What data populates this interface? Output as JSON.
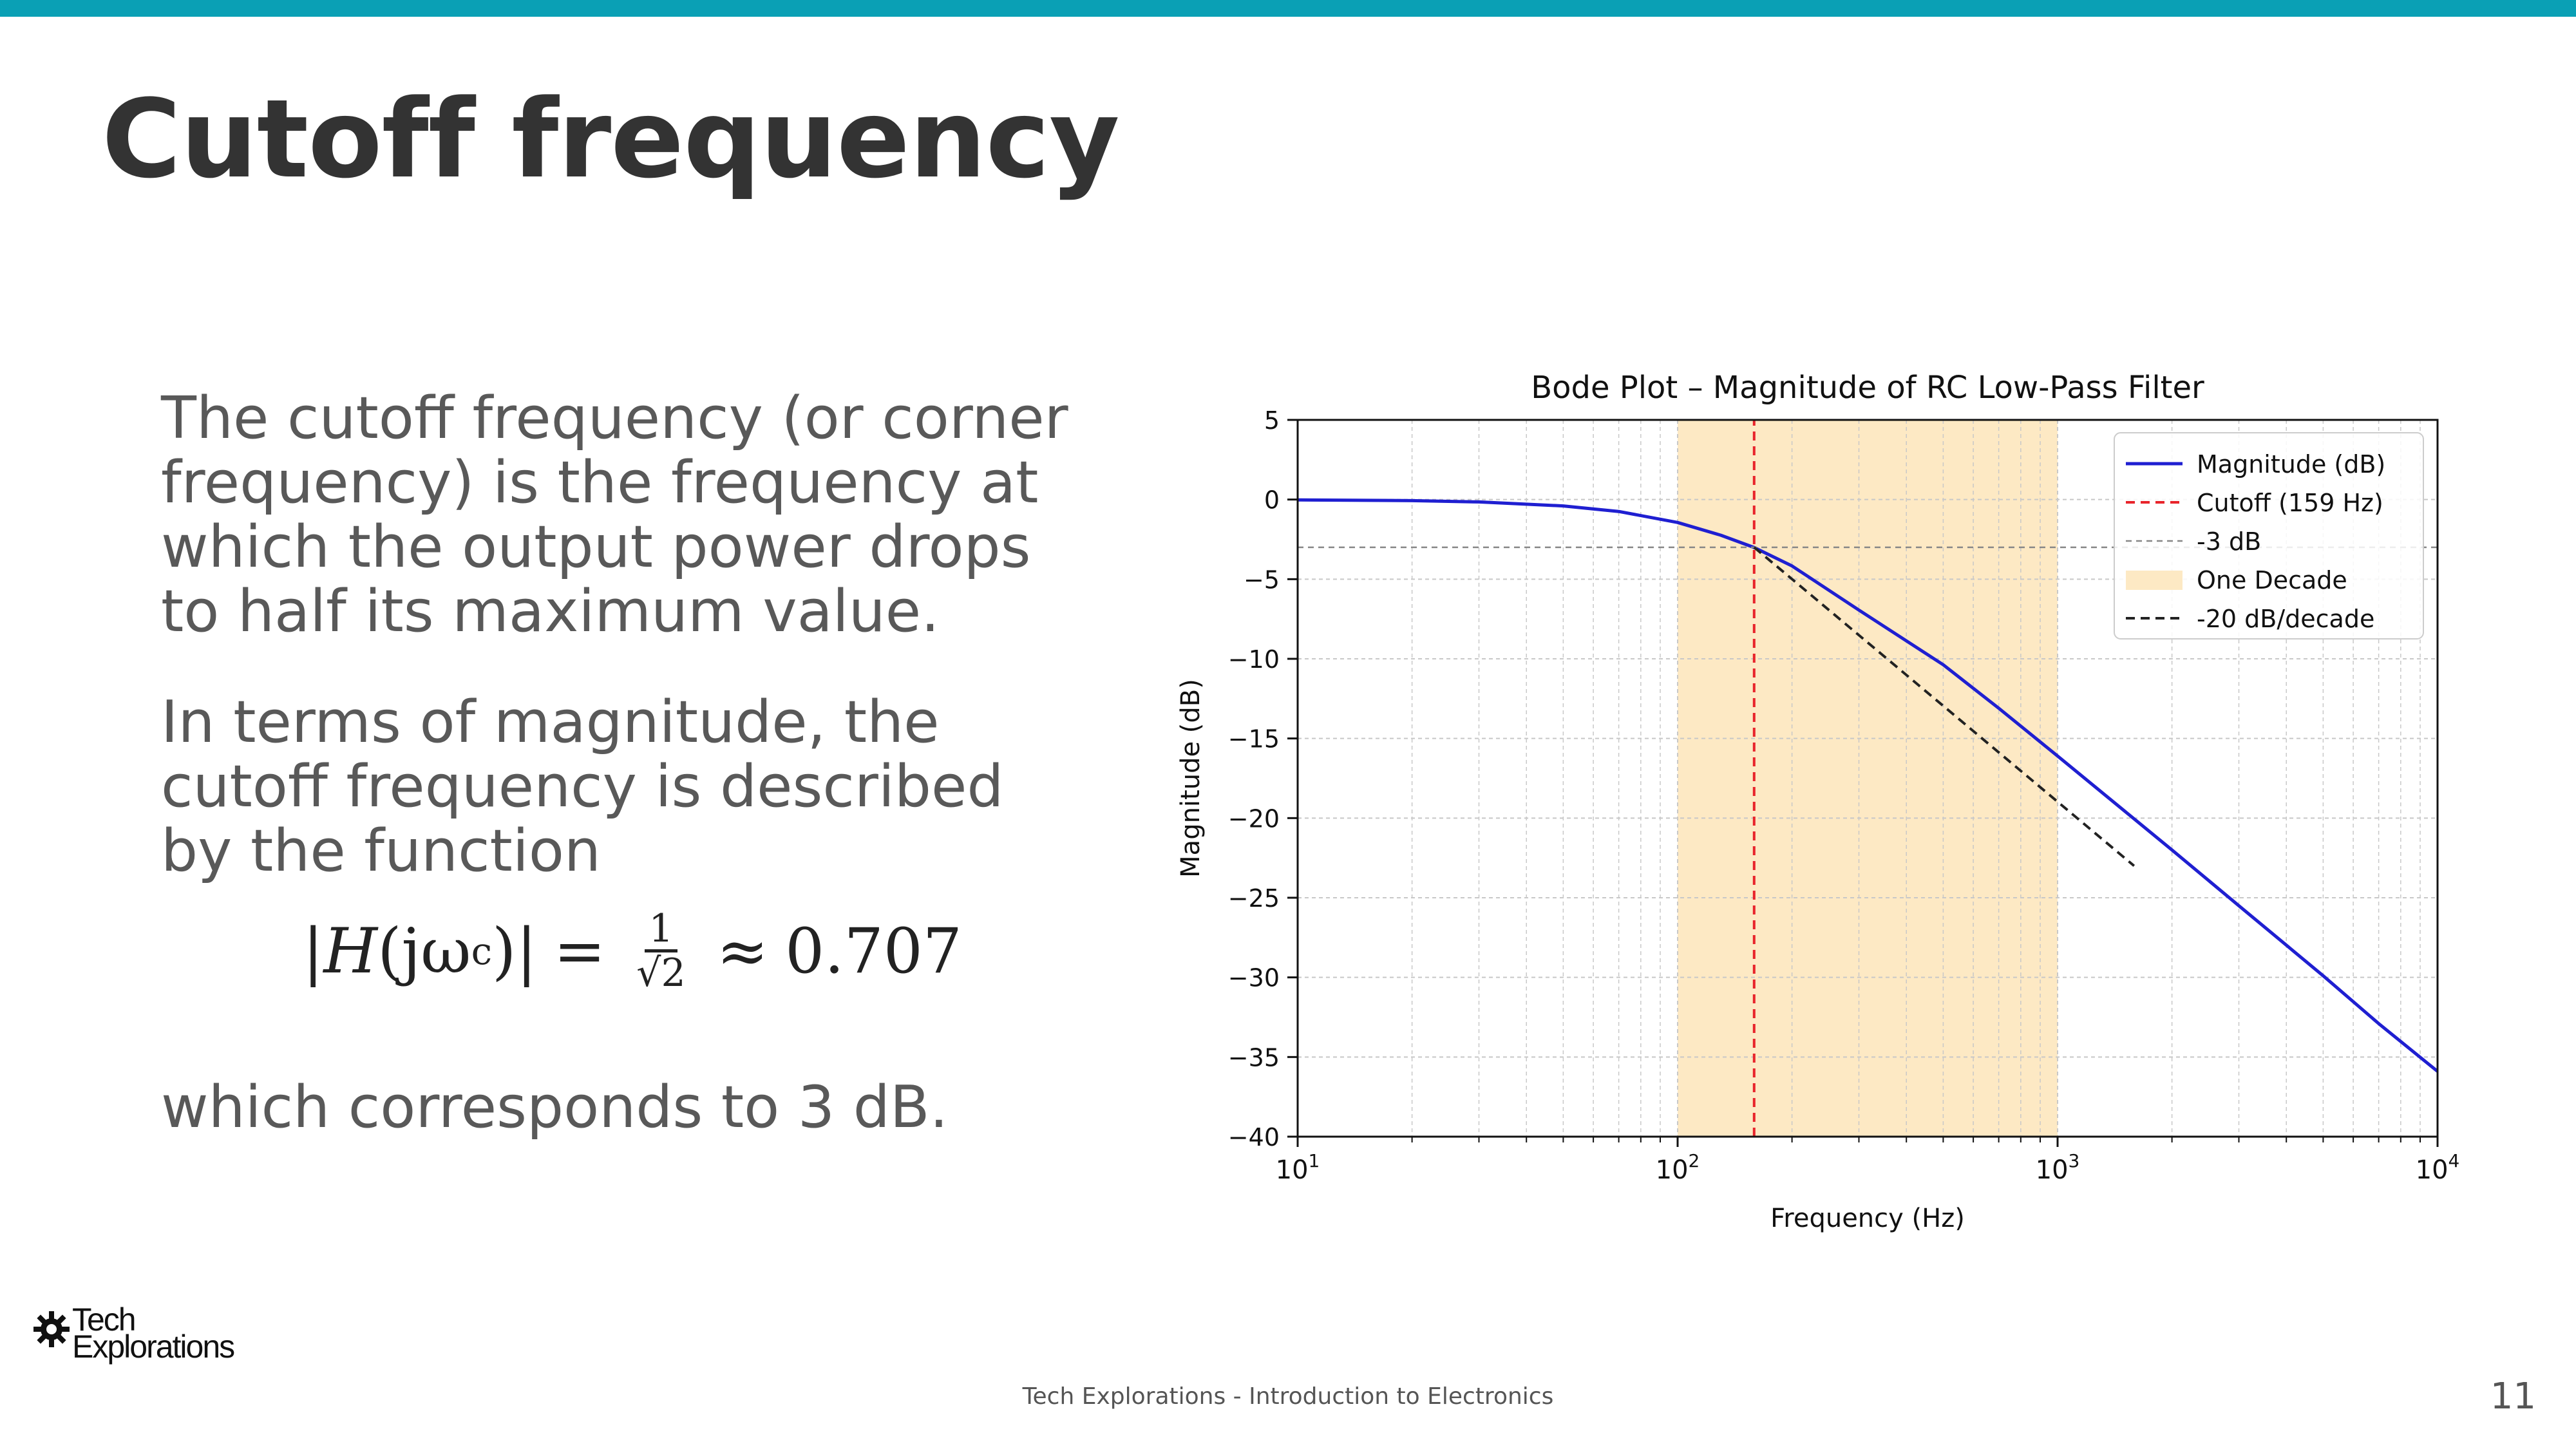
{
  "slide": {
    "title": "Cutoff frequency",
    "paragraph1": "The cutoff frequency (or corner frequency) is the frequency at which the output power drops to half its maximum value.",
    "paragraph2": "In terms of magnitude, the cutoff frequency is described by the function",
    "formula": {
      "lhs_open": "|",
      "lhs_var": "H",
      "lhs_args": "(jω",
      "lhs_sub": "c",
      "lhs_close": ")|",
      "equals": "=",
      "frac_num": "1",
      "frac_den": "√2",
      "approx": "≈",
      "value": "0.707"
    },
    "paragraph3": "which corresponds to 3 dB.",
    "footer": "Tech Explorations - Introduction to Electronics",
    "page_number": "11",
    "logo": {
      "line1": "Tech",
      "line2": "Explorations",
      "icon": "gear-icon"
    }
  },
  "colors": {
    "accent_bar": "#0aa0b5",
    "magnitude": "#1f1fd1",
    "cutoff": "#e8242b",
    "decade_band": "#fde9c4",
    "reference": "#888888",
    "slope": "#222222"
  },
  "chart_data": {
    "type": "line",
    "title": "Bode Plot – Magnitude of RC Low-Pass Filter",
    "xlabel": "Frequency (Hz)",
    "ylabel": "Magnitude (dB)",
    "xscale": "log",
    "xlim": [
      10,
      10000
    ],
    "ylim": [
      -40,
      5
    ],
    "x_ticks": [
      {
        "value": 10,
        "base": "10",
        "exp": "1"
      },
      {
        "value": 100,
        "base": "10",
        "exp": "2"
      },
      {
        "value": 1000,
        "base": "10",
        "exp": "3"
      },
      {
        "value": 10000,
        "base": "10",
        "exp": "4"
      }
    ],
    "y_ticks": [
      {
        "value": 5,
        "label": "5"
      },
      {
        "value": 0,
        "label": "0"
      },
      {
        "value": -5,
        "label": "−5"
      },
      {
        "value": -10,
        "label": "−10"
      },
      {
        "value": -15,
        "label": "−15"
      },
      {
        "value": -20,
        "label": "−20"
      },
      {
        "value": -25,
        "label": "−25"
      },
      {
        "value": -30,
        "label": "−30"
      },
      {
        "value": -35,
        "label": "−35"
      },
      {
        "value": -40,
        "label": "−40"
      }
    ],
    "grid": true,
    "legend_position": "top-right",
    "series": [
      {
        "name": "Magnitude (dB)",
        "style": "solid",
        "color": "#1f1fd1",
        "x": [
          10,
          20,
          30,
          50,
          70,
          100,
          130,
          159,
          200,
          300,
          500,
          700,
          1000,
          2000,
          3000,
          5000,
          7000,
          10000
        ],
        "y": [
          -0.02,
          -0.07,
          -0.15,
          -0.4,
          -0.75,
          -1.44,
          -2.24,
          -3.01,
          -4.17,
          -6.94,
          -10.37,
          -13.1,
          -16.1,
          -22.0,
          -25.5,
          -29.9,
          -32.9,
          -35.9
        ]
      },
      {
        "name": "Cutoff (159 Hz)",
        "style": "dashed",
        "color": "#e8242b",
        "x": [
          159,
          159
        ],
        "y": [
          -40,
          5
        ]
      },
      {
        "name": "-3 dB",
        "style": "dashed-thin",
        "color": "#888888",
        "x": [
          10,
          10000
        ],
        "y": [
          -3,
          -3
        ]
      },
      {
        "name": "-20 dB/decade",
        "style": "dashed",
        "color": "#222222",
        "x": [
          159,
          1590
        ],
        "y": [
          -3,
          -23
        ]
      }
    ],
    "band": {
      "name": "One Decade",
      "x_start": 100,
      "x_end": 1000,
      "color": "#fde9c4"
    }
  }
}
